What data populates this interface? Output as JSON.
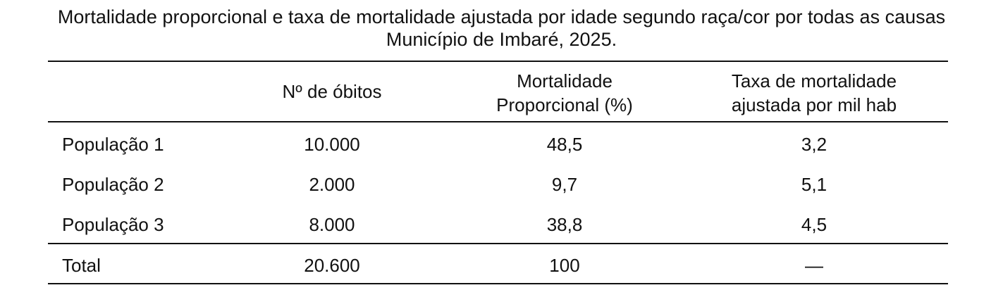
{
  "title": {
    "line1": "Mortalidade proporcional e taxa de mortalidade ajustada por idade segundo raça/cor por todas as causas",
    "line2": "Município de Imbaré, 2025."
  },
  "table": {
    "headers": [
      "",
      "Nº de óbitos",
      [
        "Mortalidade",
        "Proporcional (%)"
      ],
      [
        "Taxa de mortalidade",
        "ajustada por mil hab"
      ]
    ],
    "rows": [
      [
        "População 1",
        "10.000",
        "48,5",
        "3,2"
      ],
      [
        "População 2",
        "2.000",
        "9,7",
        "5,1"
      ],
      [
        "População 3",
        "8.000",
        "38,8",
        "4,5"
      ]
    ],
    "total": [
      "Total",
      "20.600",
      "100",
      "—"
    ]
  }
}
